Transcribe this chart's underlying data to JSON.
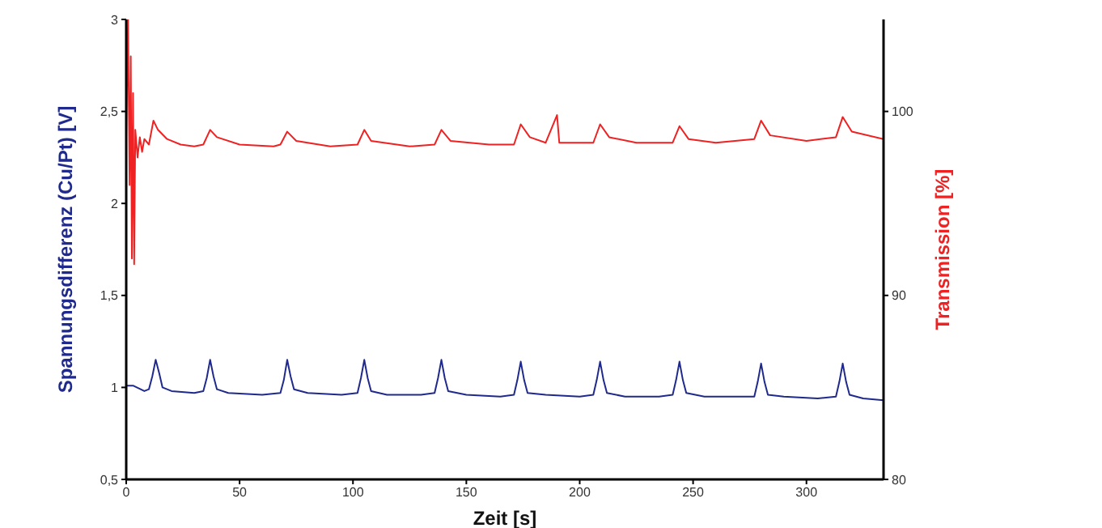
{
  "chart_data": {
    "type": "line",
    "xlabel": "Zeit [s]",
    "ylabel": "Spannungsdifferenz (Cu/Pt) [V]",
    "y2label": "Transmission [%]",
    "xlim": [
      0,
      334
    ],
    "xticks": [
      0,
      50,
      100,
      150,
      200,
      250,
      300
    ],
    "ylim": [
      0.5,
      3
    ],
    "yticks": [
      {
        "value": 0.5,
        "label": "0,5"
      },
      1,
      {
        "value": 1.5,
        "label": "1,5"
      },
      2,
      {
        "value": 2.5,
        "label": "2,5"
      },
      3
    ],
    "y2lim": [
      80,
      105
    ],
    "y2ticks": [
      80,
      90,
      100
    ],
    "marker": "none",
    "line_style": "solid",
    "series": [
      {
        "color": "#1f2a8c",
        "x": [
          0,
          3,
          8,
          10,
          11.5,
          13,
          14.5,
          16,
          20,
          30,
          34,
          35.5,
          37,
          38.5,
          40,
          45,
          60,
          68,
          69.5,
          71,
          72.5,
          74,
          80,
          95,
          102,
          103.5,
          105,
          106.5,
          108,
          115,
          130,
          136,
          137.5,
          139,
          140.5,
          142,
          150,
          165,
          171,
          172.5,
          174,
          175.5,
          177,
          185,
          200,
          206,
          207.5,
          209,
          210.5,
          212,
          220,
          235,
          241,
          242.5,
          244,
          245.5,
          247,
          255,
          270,
          277,
          278.5,
          280,
          281.5,
          283,
          290,
          305,
          313,
          314.5,
          316,
          317.5,
          319,
          325,
          334
        ],
        "values": [
          1.01,
          1.01,
          0.98,
          0.99,
          1.06,
          1.15,
          1.08,
          1.0,
          0.98,
          0.97,
          0.98,
          1.05,
          1.15,
          1.06,
          0.99,
          0.97,
          0.96,
          0.97,
          1.04,
          1.15,
          1.06,
          0.99,
          0.97,
          0.96,
          0.97,
          1.05,
          1.15,
          1.05,
          0.98,
          0.96,
          0.96,
          0.97,
          1.05,
          1.15,
          1.05,
          0.98,
          0.96,
          0.95,
          0.96,
          1.04,
          1.14,
          1.04,
          0.97,
          0.96,
          0.95,
          0.96,
          1.04,
          1.14,
          1.04,
          0.97,
          0.95,
          0.95,
          0.96,
          1.04,
          1.14,
          1.04,
          0.97,
          0.95,
          0.95,
          0.95,
          1.03,
          1.13,
          1.03,
          0.96,
          0.95,
          0.94,
          0.95,
          1.03,
          1.13,
          1.03,
          0.96,
          0.94,
          0.93
        ]
      },
      {
        "color": "#ee2222",
        "axis": "y2",
        "x": [
          0,
          0.8,
          1.5,
          2,
          2.5,
          3,
          3.5,
          4,
          5,
          6,
          7,
          8,
          10,
          12,
          14,
          18,
          24,
          30,
          34,
          37,
          40,
          50,
          65,
          68,
          71,
          75,
          90,
          102,
          105,
          108,
          125,
          136,
          139,
          143,
          160,
          171,
          174,
          178,
          185,
          190,
          191,
          200,
          206,
          209,
          213,
          225,
          241,
          244,
          248,
          260,
          277,
          280,
          284,
          300,
          313,
          316,
          320,
          334
        ],
        "values": [
          98.6,
          105,
          96,
          103,
          92,
          101,
          91.7,
          99,
          97.5,
          98.6,
          97.8,
          98.5,
          98.2,
          99.5,
          99,
          98.5,
          98.2,
          98.1,
          98.2,
          99,
          98.6,
          98.2,
          98.1,
          98.2,
          98.9,
          98.4,
          98.1,
          98.2,
          99,
          98.4,
          98.1,
          98.2,
          99,
          98.4,
          98.2,
          98.2,
          99.3,
          98.6,
          98.3,
          99.8,
          98.3,
          98.3,
          98.3,
          99.3,
          98.6,
          98.3,
          98.3,
          99.2,
          98.5,
          98.3,
          98.5,
          99.5,
          98.7,
          98.4,
          98.6,
          99.7,
          98.9,
          98.5
        ]
      }
    ]
  }
}
